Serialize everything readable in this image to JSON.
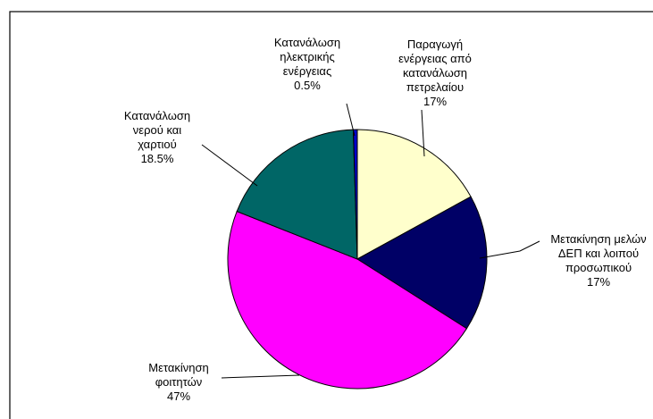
{
  "chart_data": {
    "type": "pie",
    "title": "",
    "legend": "none",
    "colors": {
      "border": "#000000",
      "frame": "#000000",
      "background": "#ffffff"
    },
    "slices": [
      {
        "label_lines": [
          "Παραγωγή",
          "ενέργειας από",
          "κατανάλωση",
          "πετρελαίου"
        ],
        "pct_label": "17%",
        "value": 17,
        "color": "#ffffcc"
      },
      {
        "label_lines": [
          "Μετακίνηση μελών",
          "ΔΕΠ και λοιπού",
          "προσωπικού"
        ],
        "pct_label": "17%",
        "value": 17,
        "color": "#000066"
      },
      {
        "label_lines": [
          "Μετακίνηση",
          "φοιτητών"
        ],
        "pct_label": "47%",
        "value": 47,
        "color": "#ff00ff"
      },
      {
        "label_lines": [
          "Κατανάλωση",
          "νερού και",
          "χαρτιού"
        ],
        "pct_label": "18.5%",
        "value": 18.5,
        "color": "#006666"
      },
      {
        "label_lines": [
          "Κατανάλωση",
          "ηλεκτρικής",
          "ενέργειας"
        ],
        "pct_label": "0.5%",
        "value": 0.5,
        "color": "#0000cc"
      }
    ]
  }
}
